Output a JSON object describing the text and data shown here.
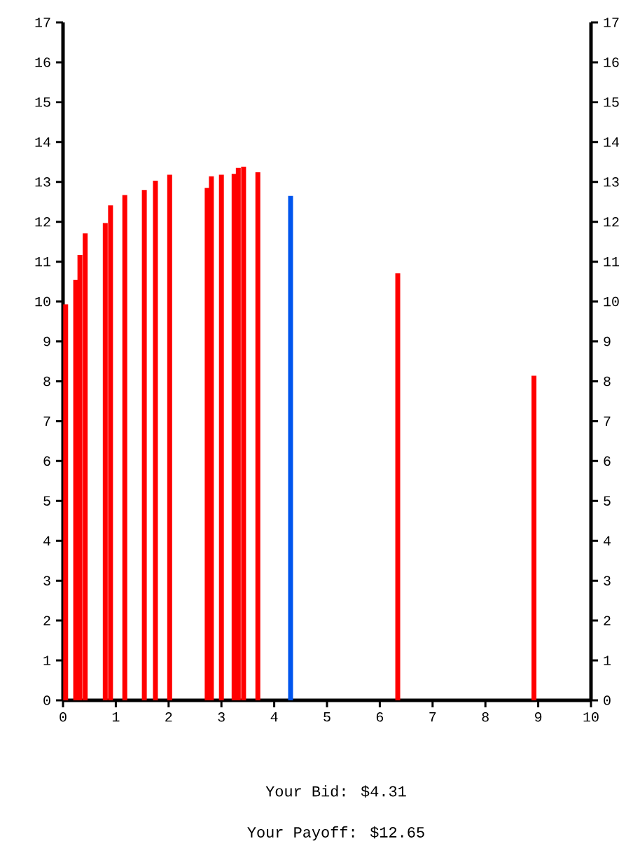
{
  "chart_data": {
    "type": "bar",
    "x": [
      0.05,
      0.24,
      0.32,
      0.42,
      0.8,
      0.9,
      1.17,
      1.54,
      1.75,
      2.02,
      2.73,
      2.81,
      3.0,
      3.24,
      3.32,
      3.42,
      3.69,
      4.31,
      6.34,
      8.92
    ],
    "values": [
      9.93,
      10.54,
      11.17,
      11.71,
      11.97,
      12.41,
      12.67,
      12.8,
      13.03,
      13.18,
      12.85,
      13.14,
      13.18,
      13.2,
      13.35,
      13.38,
      13.24,
      12.65,
      10.71,
      8.14
    ],
    "colors": [
      "#ff0000",
      "#ff0000",
      "#ff0000",
      "#ff0000",
      "#ff0000",
      "#ff0000",
      "#ff0000",
      "#ff0000",
      "#ff0000",
      "#ff0000",
      "#ff0000",
      "#ff0000",
      "#ff0000",
      "#ff0000",
      "#ff0000",
      "#ff0000",
      "#ff0000",
      "#0055ee",
      "#ff0000",
      "#ff0000"
    ],
    "xlim": [
      0,
      10
    ],
    "xticks": [
      0,
      1,
      2,
      3,
      4,
      5,
      6,
      7,
      8,
      9,
      10
    ],
    "ylim": [
      0,
      17
    ],
    "yticks": [
      0,
      1,
      2,
      3,
      4,
      5,
      6,
      7,
      8,
      9,
      10,
      11,
      12,
      13,
      14,
      15,
      16,
      17
    ],
    "y2lim": [
      0,
      17
    ],
    "y2ticks": [
      0,
      1,
      2,
      3,
      4,
      5,
      6,
      7,
      8,
      9,
      10,
      11,
      12,
      13,
      14,
      15,
      16,
      17
    ],
    "annotations": [
      "Your Bid: $4.31",
      "Your Payoff: $12.65"
    ]
  }
}
